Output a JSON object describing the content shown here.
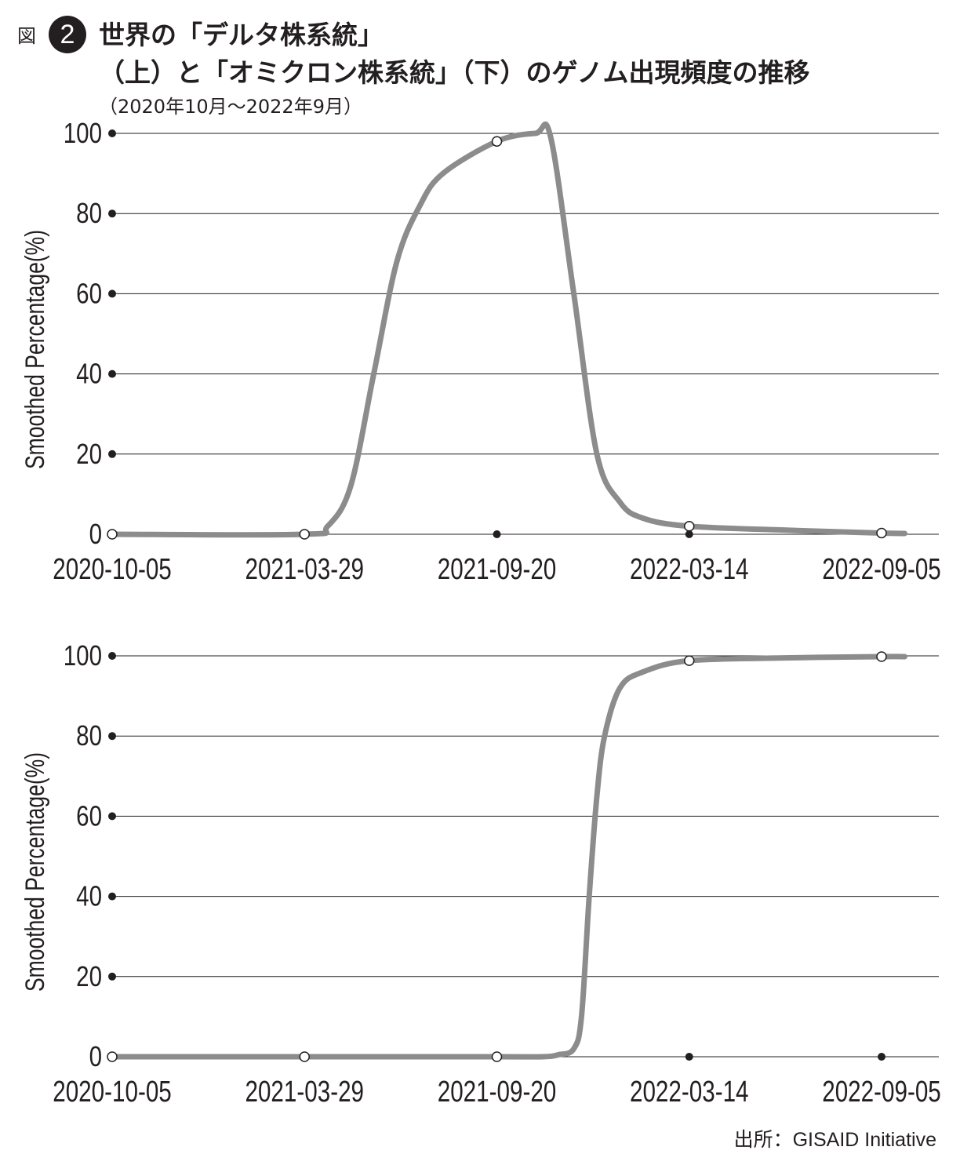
{
  "figure": {
    "label": "図",
    "number": "2",
    "title_line1": "世界の「デルタ株系統」",
    "title_line2": "（上）と「オミクロン株系統」（下）のゲノム出現頻度の推移",
    "subtitle": "（2020年10月～2022年9月）",
    "source": "出所：GISAID Initiative"
  },
  "colors": {
    "line": "#8c8c8c",
    "grid": "#231f20",
    "dot": "#231f20"
  },
  "chart_data": [
    {
      "type": "line",
      "ylabel": "Smoothed Percentage(%)",
      "ylim": [
        0,
        100
      ],
      "yticks": [
        0,
        20,
        40,
        60,
        80,
        100
      ],
      "xticks": [
        "2020-10-05",
        "2021-03-29",
        "2021-09-20",
        "2022-03-14",
        "2022-09-05"
      ],
      "grid": true,
      "series": [
        {
          "x": [
            "2020-10-05",
            "2021-03-29",
            "2021-04-19",
            "2021-05-10",
            "2021-05-31",
            "2021-06-21",
            "2021-07-12",
            "2021-08-02",
            "2021-09-20",
            "2021-10-25",
            "2021-11-08",
            "2021-11-29",
            "2021-12-20",
            "2022-01-10",
            "2022-01-31",
            "2022-03-14",
            "2022-06-13",
            "2022-09-05",
            "2022-09-26"
          ],
          "y": [
            0,
            0,
            2,
            12,
            40,
            68,
            82,
            90,
            98,
            100,
            99,
            60,
            20,
            8,
            4,
            2,
            1,
            0.3,
            0.2
          ]
        }
      ],
      "markers": {
        "hollow": [
          [
            "2020-10-05",
            0
          ],
          [
            "2021-03-29",
            0
          ],
          [
            "2021-09-20",
            98
          ],
          [
            "2022-03-14",
            2
          ],
          [
            "2022-09-05",
            0.3
          ]
        ],
        "filled": [
          [
            "2021-09-20",
            0
          ],
          [
            "2022-03-14",
            0
          ]
        ]
      }
    },
    {
      "type": "line",
      "ylabel": "Smoothed Percentage(%)",
      "ylim": [
        0,
        100
      ],
      "yticks": [
        0,
        20,
        40,
        60,
        80,
        100
      ],
      "xticks": [
        "2020-10-05",
        "2021-03-29",
        "2021-09-20",
        "2022-03-14",
        "2022-09-05"
      ],
      "grid": true,
      "series": [
        {
          "x": [
            "2020-10-05",
            "2021-03-29",
            "2021-09-20",
            "2021-11-01",
            "2021-11-15",
            "2021-11-29",
            "2021-12-06",
            "2021-12-13",
            "2021-12-20",
            "2021-12-27",
            "2022-01-10",
            "2022-01-31",
            "2022-03-14",
            "2022-06-13",
            "2022-09-05",
            "2022-09-26"
          ],
          "y": [
            0,
            0,
            0,
            0,
            0.5,
            2,
            10,
            40,
            65,
            80,
            92,
            96,
            98.8,
            99.5,
            99.8,
            99.8
          ]
        }
      ],
      "markers": {
        "hollow": [
          [
            "2020-10-05",
            0
          ],
          [
            "2021-03-29",
            0
          ],
          [
            "2021-09-20",
            0
          ],
          [
            "2022-03-14",
            98.8
          ],
          [
            "2022-09-05",
            99.8
          ]
        ],
        "filled": [
          [
            "2022-03-14",
            0
          ],
          [
            "2022-09-05",
            0
          ]
        ]
      }
    }
  ]
}
